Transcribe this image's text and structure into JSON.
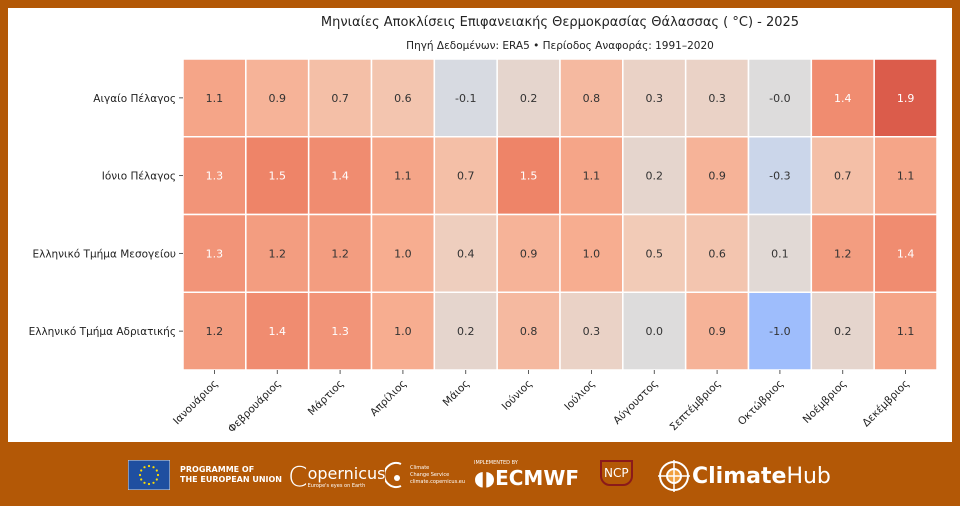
{
  "chart_data": {
    "type": "heatmap",
    "title": "Μηνιαίες Αποκλίσεις Επιφανειακής Θερμοκρασίας Θάλασσας ( °C) - 2025",
    "subtitle": "Πηγή Δεδομένων: ERA5 • Περίοδος Αναφοράς: 1991–2020",
    "colormap": "coolwarm",
    "vrange": [
      -2.5,
      2.5
    ],
    "columns": [
      "Ιανουάριος",
      "Φεβρουάριος",
      "Μάρτιος",
      "Απρίλιος",
      "Μάιος",
      "Ιούνιος",
      "Ιούλιος",
      "Αύγουστος",
      "Σεπτέμβριος",
      "Οκτώβριος",
      "Νοέμβριος",
      "Δεκέμβριος"
    ],
    "rows": [
      "Αιγαίο Πέλαγος",
      "Ιόνιο Πέλαγος",
      "Ελληνικό Τμήμα Μεσογείου",
      "Ελληνικό Τμήμα Αδριατικής"
    ],
    "labels": [
      [
        "1.1",
        "0.9",
        "0.7",
        "0.6",
        "-0.1",
        "0.2",
        "0.8",
        "0.3",
        "0.3",
        "-0.0",
        "1.4",
        "1.9"
      ],
      [
        "1.3",
        "1.5",
        "1.4",
        "1.1",
        "0.7",
        "1.5",
        "1.1",
        "0.2",
        "0.9",
        "-0.3",
        "0.7",
        "1.1"
      ],
      [
        "1.3",
        "1.2",
        "1.2",
        "1.0",
        "0.4",
        "0.9",
        "1.0",
        "0.5",
        "0.6",
        "0.1",
        "1.2",
        "1.4"
      ],
      [
        "1.2",
        "1.4",
        "1.3",
        "1.0",
        "0.2",
        "0.8",
        "0.3",
        "0.0",
        "0.9",
        "-1.0",
        "0.2",
        "1.1"
      ]
    ]
  },
  "footer": {
    "eu_line1": "PROGRAMME OF",
    "eu_line2": "THE EUROPEAN UNION",
    "copernicus": "opernicus",
    "copernicus_c": "C",
    "copernicus_tag": "Europe's eyes on Earth",
    "c3s_line1": "Climate",
    "c3s_line2": "Change Service",
    "c3s_url": "climate.copernicus.eu",
    "ecmwf_pre": "IMPLEMENTED BY",
    "ecmwf": "ECMWF",
    "ncp": "NCP",
    "climatehub_a": "Climate",
    "climatehub_b": "Hub"
  }
}
